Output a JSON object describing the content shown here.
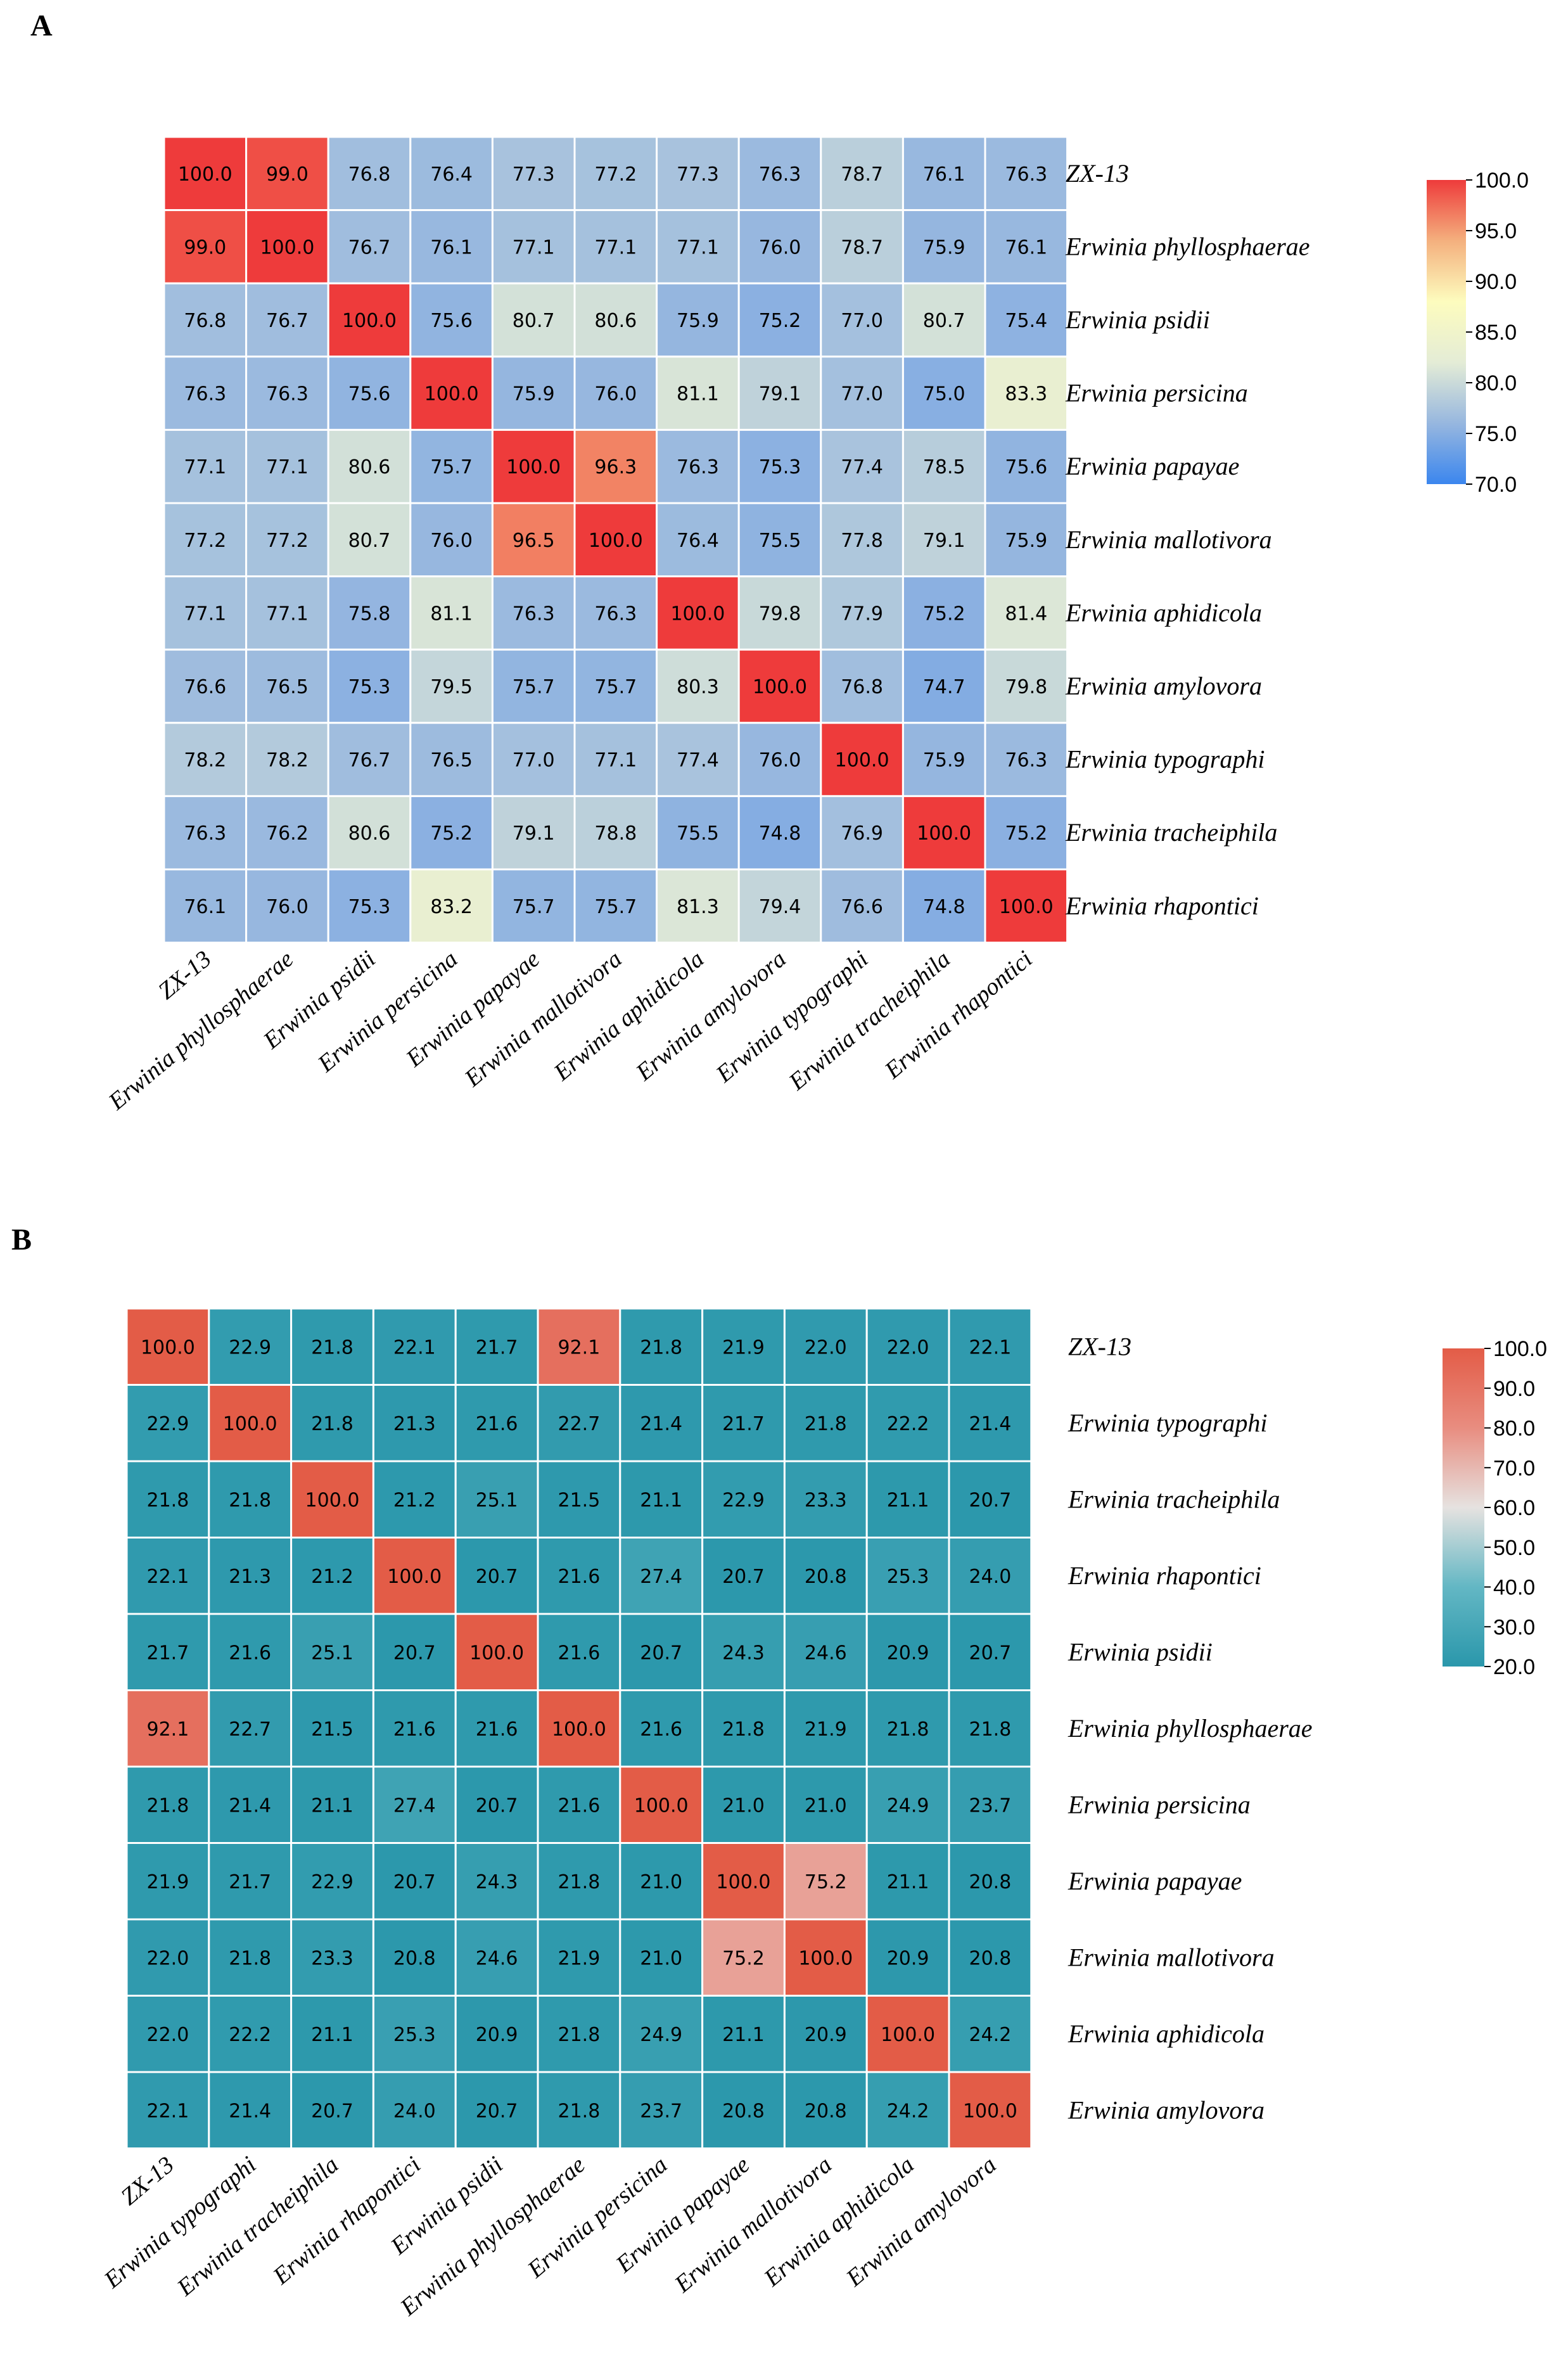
{
  "chart_data": [
    {
      "panel": "A",
      "type": "heatmap",
      "title": "",
      "xlabel": "",
      "ylabel": "",
      "rows": [
        "ZX-13",
        "Erwinia phyllosphaerae",
        "Erwinia psidii",
        "Erwinia persicina",
        "Erwinia papayae",
        "Erwinia mallotivora",
        "Erwinia aphidicola",
        "Erwinia amylovora",
        "Erwinia typographi",
        "Erwinia tracheiphila",
        "Erwinia rhapontici"
      ],
      "columns": [
        "ZX-13",
        "Erwinia phyllosphaerae",
        "Erwinia psidii",
        "Erwinia persicina",
        "Erwinia papayae",
        "Erwinia mallotivora",
        "Erwinia aphidicola",
        "Erwinia amylovora",
        "Erwinia typographi",
        "Erwinia tracheiphila",
        "Erwinia rhapontici"
      ],
      "values": [
        [
          100.0,
          99.0,
          76.8,
          76.4,
          77.3,
          77.2,
          77.3,
          76.3,
          78.7,
          76.1,
          76.3
        ],
        [
          99.0,
          100.0,
          76.7,
          76.1,
          77.1,
          77.1,
          77.1,
          76.0,
          78.7,
          75.9,
          76.1
        ],
        [
          76.8,
          76.7,
          100.0,
          75.6,
          80.7,
          80.6,
          75.9,
          75.2,
          77.0,
          80.7,
          75.4
        ],
        [
          76.3,
          76.3,
          75.6,
          100.0,
          75.9,
          76.0,
          81.1,
          79.1,
          77.0,
          75.0,
          83.3
        ],
        [
          77.1,
          77.1,
          80.6,
          75.7,
          100.0,
          96.3,
          76.3,
          75.3,
          77.4,
          78.5,
          75.6
        ],
        [
          77.2,
          77.2,
          80.7,
          76.0,
          96.5,
          100.0,
          76.4,
          75.5,
          77.8,
          79.1,
          75.9
        ],
        [
          77.1,
          77.1,
          75.8,
          81.1,
          76.3,
          76.3,
          100.0,
          79.8,
          77.9,
          75.2,
          81.4
        ],
        [
          76.6,
          76.5,
          75.3,
          79.5,
          75.7,
          75.7,
          80.3,
          100.0,
          76.8,
          74.7,
          79.8
        ],
        [
          78.2,
          78.2,
          76.7,
          76.5,
          77.0,
          77.1,
          77.4,
          76.0,
          100.0,
          75.9,
          76.3
        ],
        [
          76.3,
          76.2,
          80.6,
          75.2,
          79.1,
          78.8,
          75.5,
          74.8,
          76.9,
          100.0,
          75.2
        ],
        [
          76.1,
          76.0,
          75.3,
          83.2,
          75.7,
          75.7,
          81.3,
          79.4,
          76.6,
          74.8,
          100.0
        ]
      ],
      "colorbar": {
        "range": [
          70.0,
          100.0
        ],
        "ticks": [
          "100.0",
          "95.0",
          "90.0",
          "85.0",
          "80.0",
          "75.0",
          "70.0"
        ],
        "colors": [
          "#3b86ee",
          "#97b7df",
          "#e4ecd6",
          "#fdfcbe",
          "#f4b07e",
          "#ee3b3b"
        ]
      }
    },
    {
      "panel": "B",
      "type": "heatmap",
      "title": "",
      "xlabel": "",
      "ylabel": "",
      "rows": [
        "ZX-13",
        "Erwinia typographi",
        "Erwinia tracheiphila",
        "Erwinia rhapontici",
        "Erwinia psidii",
        "Erwinia phyllosphaerae",
        "Erwinia persicina",
        "Erwinia papayae",
        "Erwinia mallotivora",
        "Erwinia aphidicola",
        "Erwinia amylovora"
      ],
      "columns": [
        "ZX-13",
        "Erwinia typographi",
        "Erwinia tracheiphila",
        "Erwinia rhapontici",
        "Erwinia psidii",
        "Erwinia phyllosphaerae",
        "Erwinia persicina",
        "Erwinia papayae",
        "Erwinia mallotivora",
        "Erwinia aphidicola",
        "Erwinia amylovora"
      ],
      "values": [
        [
          100.0,
          22.9,
          21.8,
          22.1,
          21.7,
          92.1,
          21.8,
          21.9,
          22.0,
          22.0,
          22.1
        ],
        [
          22.9,
          100.0,
          21.8,
          21.3,
          21.6,
          22.7,
          21.4,
          21.7,
          21.8,
          22.2,
          21.4
        ],
        [
          21.8,
          21.8,
          100.0,
          21.2,
          25.1,
          21.5,
          21.1,
          22.9,
          23.3,
          21.1,
          20.7
        ],
        [
          22.1,
          21.3,
          21.2,
          100.0,
          20.7,
          21.6,
          27.4,
          20.7,
          20.8,
          25.3,
          24.0
        ],
        [
          21.7,
          21.6,
          25.1,
          20.7,
          100.0,
          21.6,
          20.7,
          24.3,
          24.6,
          20.9,
          20.7
        ],
        [
          92.1,
          22.7,
          21.5,
          21.6,
          21.6,
          100.0,
          21.6,
          21.8,
          21.9,
          21.8,
          21.8
        ],
        [
          21.8,
          21.4,
          21.1,
          27.4,
          20.7,
          21.6,
          100.0,
          21.0,
          21.0,
          24.9,
          23.7
        ],
        [
          21.9,
          21.7,
          22.9,
          20.7,
          24.3,
          21.8,
          21.0,
          100.0,
          75.2,
          21.1,
          20.8
        ],
        [
          22.0,
          21.8,
          23.3,
          20.8,
          24.6,
          21.9,
          21.0,
          75.2,
          100.0,
          20.9,
          20.8
        ],
        [
          22.0,
          22.2,
          21.1,
          25.3,
          20.9,
          21.8,
          24.9,
          21.1,
          20.9,
          100.0,
          24.2
        ],
        [
          22.1,
          21.4,
          20.7,
          24.0,
          20.7,
          21.8,
          23.7,
          20.8,
          20.8,
          24.2,
          100.0
        ]
      ],
      "colorbar": {
        "range": [
          20.0,
          100.0
        ],
        "ticks": [
          "100.0",
          "90.0",
          "80.0",
          "70.0",
          "60.0",
          "50.0",
          "40.0",
          "30.0",
          "20.0"
        ],
        "colors": [
          "#2a97ab",
          "#63b7c4",
          "#e6e2e0",
          "#e88d80",
          "#e35c47"
        ]
      }
    }
  ]
}
